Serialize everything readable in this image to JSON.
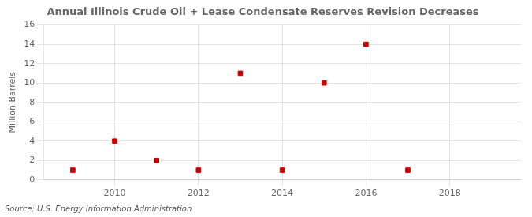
{
  "chart_data": {
    "type": "scatter",
    "title": "Annual Illinois Crude Oil + Lease Condensate Reserves Revision Decreases",
    "ylabel": "Million Barrels",
    "annotations": [
      "Source: U.S. Energy Information Administration"
    ],
    "x": [
      2009,
      2010,
      2011,
      2012,
      2013,
      2014,
      2015,
      2016,
      2017
    ],
    "values": [
      1,
      4,
      2,
      1,
      11,
      1,
      10,
      14,
      1
    ],
    "color": "#cc0000",
    "marker": "square",
    "xlim": [
      2008.3,
      2019.7
    ],
    "xticks": [
      2010,
      2012,
      2014,
      2016,
      2018
    ],
    "ylim": [
      0,
      16
    ],
    "yticks": [
      0,
      2,
      4,
      6,
      8,
      10,
      12,
      14,
      16
    ],
    "grid": true
  }
}
